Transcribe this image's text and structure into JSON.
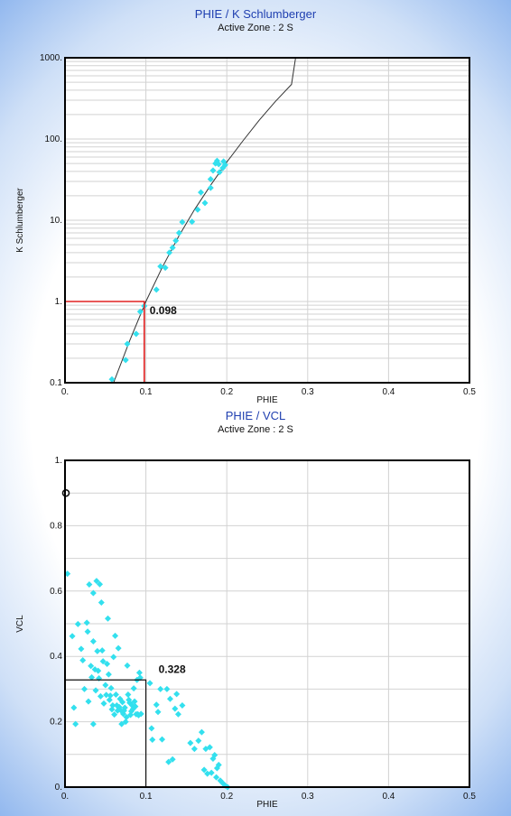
{
  "chart_data": [
    {
      "type": "scatter",
      "title": "PHIE / K Schlumberger",
      "subtitle": "Active Zone : 2  S",
      "xlabel": "PHIE",
      "ylabel": "K Schlumberger",
      "xlim": [
        0,
        0.5
      ],
      "ylim": [
        0.1,
        1000
      ],
      "yscale": "log",
      "grid": true,
      "x_ticks": [
        "0.",
        "0.1",
        "0.2",
        "0.3",
        "0.4",
        "0.5"
      ],
      "y_ticks": [
        "0.1",
        "1.",
        "10.",
        "100.",
        "1000."
      ],
      "marker_color": "#33e0ee",
      "line_color": "#333333",
      "cutoff_color": "#e02020",
      "cutoff": {
        "x": 0.098,
        "y": 1.0,
        "label": "0.098"
      },
      "trend_line": [
        [
          0.06,
          0.1
        ],
        [
          0.08,
          0.33
        ],
        [
          0.1,
          1.0
        ],
        [
          0.12,
          2.6
        ],
        [
          0.14,
          6.2
        ],
        [
          0.16,
          13.5
        ],
        [
          0.18,
          27
        ],
        [
          0.2,
          52
        ],
        [
          0.22,
          95
        ],
        [
          0.24,
          170
        ],
        [
          0.26,
          290
        ],
        [
          0.28,
          470
        ],
        [
          0.285,
          1000
        ]
      ],
      "points": [
        [
          0.058,
          0.11
        ],
        [
          0.075,
          0.19
        ],
        [
          0.077,
          0.3
        ],
        [
          0.088,
          0.4
        ],
        [
          0.093,
          0.75
        ],
        [
          0.098,
          0.88
        ],
        [
          0.113,
          1.4
        ],
        [
          0.118,
          2.7
        ],
        [
          0.124,
          2.6
        ],
        [
          0.129,
          4.0
        ],
        [
          0.133,
          4.6
        ],
        [
          0.137,
          5.6
        ],
        [
          0.141,
          7.0
        ],
        [
          0.145,
          9.5
        ],
        [
          0.157,
          9.6
        ],
        [
          0.164,
          13.5
        ],
        [
          0.173,
          16.3
        ],
        [
          0.168,
          22
        ],
        [
          0.18,
          25
        ],
        [
          0.18,
          32
        ],
        [
          0.183,
          41
        ],
        [
          0.186,
          50
        ],
        [
          0.19,
          49
        ],
        [
          0.195,
          44
        ],
        [
          0.191,
          39
        ],
        [
          0.196,
          53
        ],
        [
          0.198,
          48
        ],
        [
          0.188,
          54
        ]
      ]
    },
    {
      "type": "scatter",
      "title": "PHIE / VCL",
      "subtitle": "Active Zone : 2  S",
      "xlabel": "PHIE",
      "ylabel": "VCL",
      "xlim": [
        0,
        0.5
      ],
      "ylim": [
        0,
        1
      ],
      "grid": true,
      "x_ticks": [
        "0.",
        "0.1",
        "0.2",
        "0.3",
        "0.4",
        "0.5"
      ],
      "y_ticks": [
        "0.",
        "0.2",
        "0.4",
        "0.6",
        "0.8",
        "1."
      ],
      "marker_color": "#33e0ee",
      "cutoff_color": "#111111",
      "cutoff": {
        "x": 0.1,
        "y": 0.328,
        "label": "0.328"
      },
      "outlier": {
        "x": 0.0,
        "y": 0.9,
        "marker": "circle"
      },
      "points": [
        [
          0.003,
          0.653
        ],
        [
          0.009,
          0.462
        ],
        [
          0.011,
          0.243
        ],
        [
          0.016,
          0.499
        ],
        [
          0.013,
          0.193
        ],
        [
          0.02,
          0.423
        ],
        [
          0.022,
          0.388
        ],
        [
          0.024,
          0.3
        ],
        [
          0.027,
          0.503
        ],
        [
          0.028,
          0.476
        ],
        [
          0.029,
          0.262
        ],
        [
          0.03,
          0.62
        ],
        [
          0.032,
          0.371
        ],
        [
          0.033,
          0.336
        ],
        [
          0.035,
          0.446
        ],
        [
          0.035,
          0.594
        ],
        [
          0.035,
          0.193
        ],
        [
          0.037,
          0.36
        ],
        [
          0.038,
          0.296
        ],
        [
          0.039,
          0.631
        ],
        [
          0.04,
          0.416
        ],
        [
          0.041,
          0.356
        ],
        [
          0.042,
          0.333
        ],
        [
          0.043,
          0.621
        ],
        [
          0.044,
          0.278
        ],
        [
          0.045,
          0.565
        ],
        [
          0.046,
          0.418
        ],
        [
          0.047,
          0.385
        ],
        [
          0.048,
          0.256
        ],
        [
          0.05,
          0.312
        ],
        [
          0.051,
          0.282
        ],
        [
          0.052,
          0.377
        ],
        [
          0.053,
          0.516
        ],
        [
          0.054,
          0.345
        ],
        [
          0.055,
          0.267
        ],
        [
          0.056,
          0.28
        ],
        [
          0.057,
          0.303
        ],
        [
          0.058,
          0.238
        ],
        [
          0.059,
          0.25
        ],
        [
          0.06,
          0.398
        ],
        [
          0.061,
          0.222
        ],
        [
          0.062,
          0.463
        ],
        [
          0.063,
          0.283
        ],
        [
          0.064,
          0.25
        ],
        [
          0.065,
          0.234
        ],
        [
          0.066,
          0.425
        ],
        [
          0.067,
          0.245
        ],
        [
          0.068,
          0.27
        ],
        [
          0.069,
          0.235
        ],
        [
          0.07,
          0.193
        ],
        [
          0.071,
          0.26
        ],
        [
          0.072,
          0.224
        ],
        [
          0.073,
          0.234
        ],
        [
          0.074,
          0.243
        ],
        [
          0.075,
          0.2
        ],
        [
          0.076,
          0.214
        ],
        [
          0.077,
          0.372
        ],
        [
          0.078,
          0.283
        ],
        [
          0.079,
          0.267
        ],
        [
          0.08,
          0.258
        ],
        [
          0.081,
          0.221
        ],
        [
          0.082,
          0.232
        ],
        [
          0.083,
          0.25
        ],
        [
          0.084,
          0.239
        ],
        [
          0.085,
          0.302
        ],
        [
          0.086,
          0.262
        ],
        [
          0.087,
          0.247
        ],
        [
          0.088,
          0.223
        ],
        [
          0.089,
          0.328
        ],
        [
          0.09,
          0.223
        ],
        [
          0.091,
          0.22
        ],
        [
          0.092,
          0.35
        ],
        [
          0.093,
          0.335
        ],
        [
          0.094,
          0.224
        ],
        [
          0.105,
          0.318
        ],
        [
          0.107,
          0.18
        ],
        [
          0.108,
          0.145
        ],
        [
          0.113,
          0.252
        ],
        [
          0.115,
          0.23
        ],
        [
          0.118,
          0.3
        ],
        [
          0.12,
          0.146
        ],
        [
          0.126,
          0.3
        ],
        [
          0.128,
          0.077
        ],
        [
          0.13,
          0.27
        ],
        [
          0.133,
          0.085
        ],
        [
          0.136,
          0.24
        ],
        [
          0.138,
          0.285
        ],
        [
          0.14,
          0.223
        ],
        [
          0.145,
          0.25
        ],
        [
          0.155,
          0.135
        ],
        [
          0.16,
          0.117
        ],
        [
          0.165,
          0.142
        ],
        [
          0.169,
          0.168
        ],
        [
          0.172,
          0.053
        ],
        [
          0.174,
          0.117
        ],
        [
          0.176,
          0.041
        ],
        [
          0.179,
          0.122
        ],
        [
          0.181,
          0.044
        ],
        [
          0.183,
          0.087
        ],
        [
          0.185,
          0.098
        ],
        [
          0.187,
          0.03
        ],
        [
          0.19,
          0.068
        ],
        [
          0.192,
          0.02
        ],
        [
          0.195,
          0.012
        ],
        [
          0.198,
          0.005
        ],
        [
          0.201,
          0.0
        ],
        [
          0.188,
          0.058
        ]
      ]
    }
  ]
}
